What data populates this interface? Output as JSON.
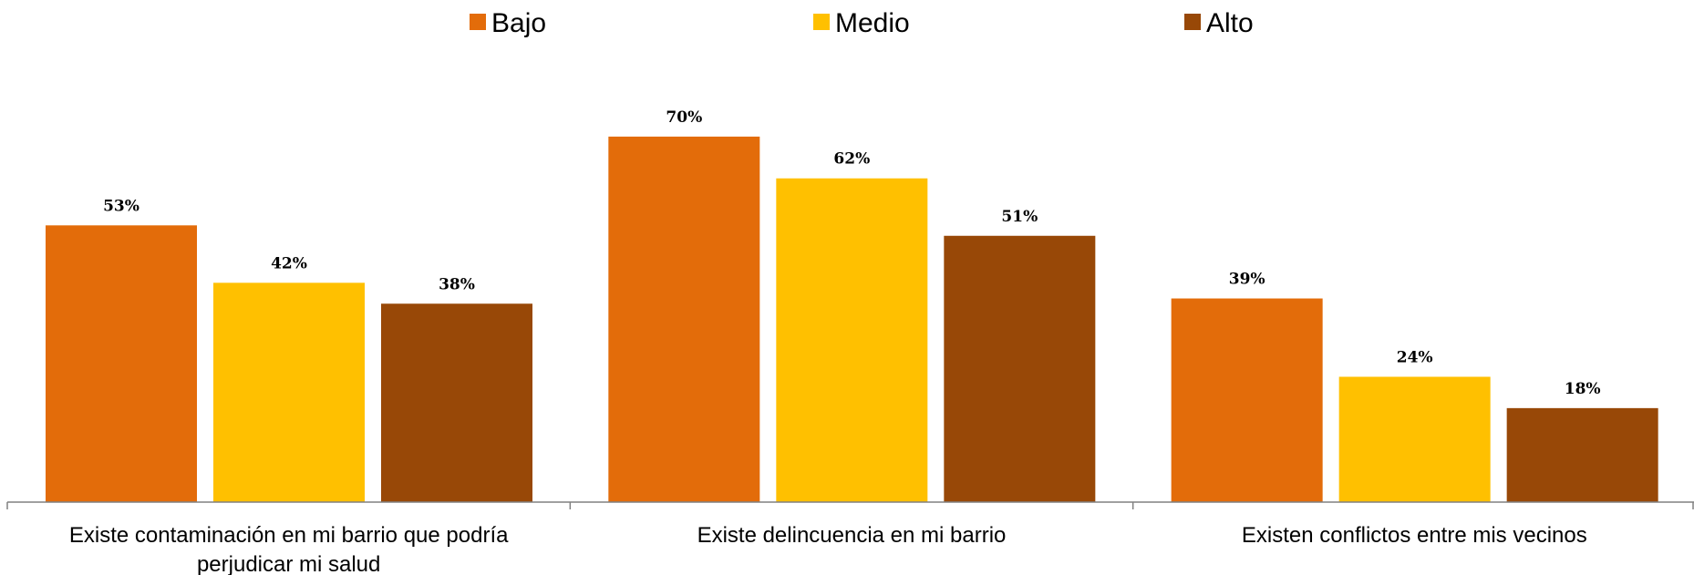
{
  "chart_data": {
    "type": "bar",
    "categories": [
      [
        "Existe contaminación en mi barrio que podría",
        "perjudicar mi salud"
      ],
      [
        "Existe delincuencia en mi barrio"
      ],
      [
        "Existen conflictos entre mis vecinos"
      ]
    ],
    "series": [
      {
        "name": "Bajo",
        "color": "#E36C0A",
        "values": [
          53,
          70,
          39
        ],
        "labels": [
          "53%",
          "70%",
          "39%"
        ]
      },
      {
        "name": "Medio",
        "color": "#FFC000",
        "values": [
          42,
          62,
          24
        ],
        "labels": [
          "42%",
          "62%",
          "24%"
        ]
      },
      {
        "name": "Alto",
        "color": "#984807",
        "values": [
          38,
          51,
          18
        ],
        "labels": [
          "38%",
          "51%",
          "18%"
        ]
      }
    ],
    "ylim": [
      0,
      100
    ],
    "legend_position": "top-center",
    "grid": false,
    "y_axis_visible": false,
    "axis_color": "#808080"
  }
}
